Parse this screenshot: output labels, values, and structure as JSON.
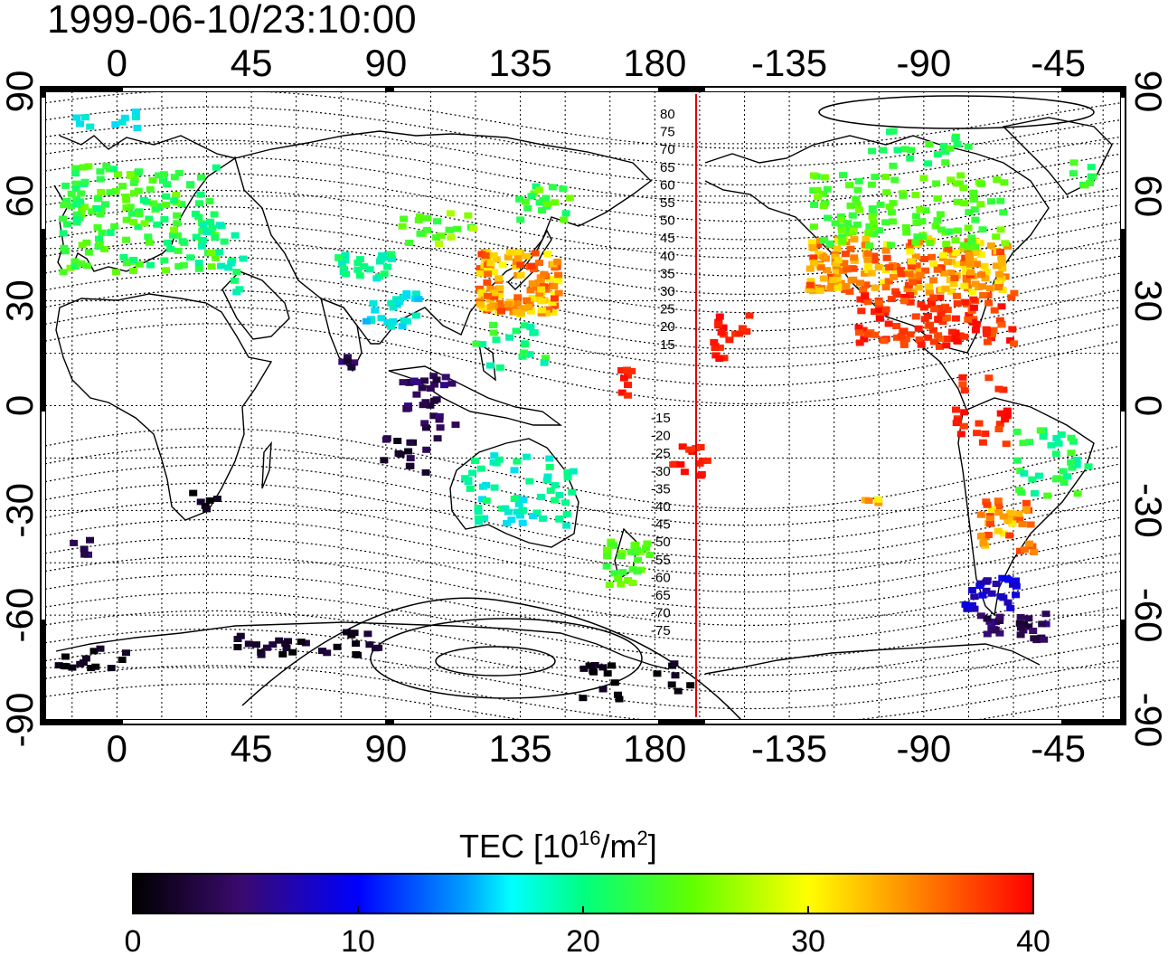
{
  "timestamp": "1999-06-10/23:10:00",
  "top_axis_labels": [
    "0",
    "45",
    "90",
    "135",
    "180",
    "-135",
    "-90",
    "-45"
  ],
  "bottom_axis_labels": [
    "0",
    "45",
    "90",
    "135",
    "180",
    "-135",
    "-90",
    "-45"
  ],
  "left_axis_labels": [
    "90",
    "60",
    "30",
    "0",
    "-30",
    "-60",
    "-90"
  ],
  "right_axis_labels": [
    "90",
    "60",
    "30",
    "0",
    "-30",
    "-60",
    "-90"
  ],
  "contour_labels_north": [
    "80",
    "75",
    "70",
    "65",
    "60",
    "55",
    "50",
    "45",
    "40",
    "35",
    "30",
    "25",
    "20",
    "15"
  ],
  "contour_labels_south": [
    "-15",
    "-20",
    "-25",
    "-30",
    "-35",
    "-40",
    "-45",
    "-50",
    "-55",
    "-60",
    "-65",
    "-70",
    "-75"
  ],
  "colorbar": {
    "title_prefix": "TEC  [10",
    "title_exp1": "16",
    "title_mid": "/m",
    "title_exp2": "2",
    "title_suffix": "]",
    "ticks": [
      "0",
      "10",
      "20",
      "30",
      "40"
    ],
    "min": 0,
    "max": 40
  },
  "colors": {
    "terminator_line": "#e00000",
    "grid": "#000000",
    "coastline": "#000000"
  }
}
